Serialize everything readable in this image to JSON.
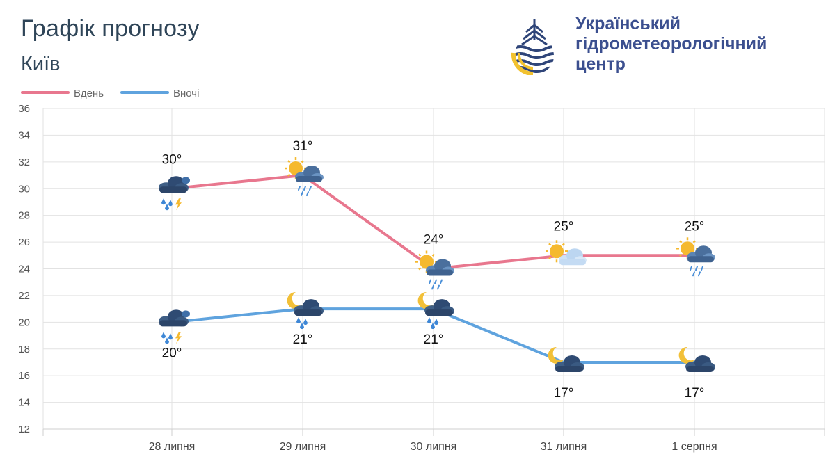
{
  "header": {
    "title": "Графік прогнозу",
    "city": "Київ"
  },
  "logo": {
    "line1": "Український",
    "line2": "гідрометеорологічний",
    "line3": "центр"
  },
  "chart_data": {
    "type": "line",
    "categories": [
      "28 липня",
      "29 липня",
      "30 липня",
      "31 липня",
      "1 серпня"
    ],
    "ylim": [
      12,
      36
    ],
    "yticks": [
      12,
      14,
      16,
      18,
      20,
      22,
      24,
      26,
      28,
      30,
      32,
      34,
      36
    ],
    "grid": true,
    "legend_position": "top-left",
    "series": [
      {
        "name": "Вдень",
        "color": "#e8778e",
        "values": [
          30,
          31,
          24,
          25,
          25
        ],
        "labels": [
          "30°",
          "31°",
          "24°",
          "25°",
          "25°"
        ],
        "icons": [
          "thunderstorm-rain-icon",
          "sun-cloud-rain-icon",
          "sun-cloud-rain-icon",
          "sun-cloud-icon",
          "sun-cloud-rain-icon"
        ]
      },
      {
        "name": "Вночі",
        "color": "#5fa3de",
        "values": [
          20,
          21,
          21,
          17,
          17
        ],
        "labels": [
          "20°",
          "21°",
          "21°",
          "17°",
          "17°"
        ],
        "icons": [
          "thunderstorm-rain-icon",
          "moon-cloud-rain-icon",
          "moon-cloud-rain-icon",
          "moon-cloud-icon",
          "moon-cloud-icon"
        ]
      }
    ]
  }
}
